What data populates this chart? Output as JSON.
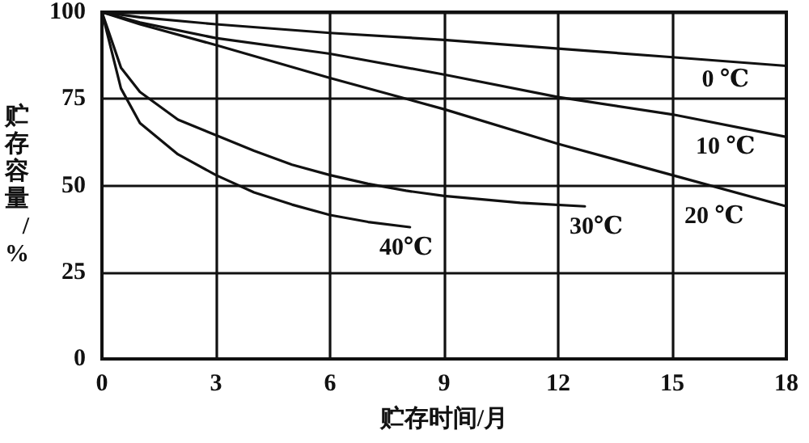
{
  "chart_data": {
    "type": "line",
    "xlabel": "贮存时间/月",
    "ylabel": "贮存容量/%",
    "xlim": [
      0,
      18
    ],
    "xticks": [
      0,
      3,
      6,
      9,
      12,
      15,
      18
    ],
    "ylim": [
      0,
      100
    ],
    "yticks": [
      0,
      25,
      50,
      75,
      100
    ],
    "grid": true,
    "marker": "none",
    "line_style": "solid",
    "series": [
      {
        "color": "#111111",
        "x": [
          0,
          1,
          3,
          6,
          9,
          12,
          15,
          18
        ],
        "values": [
          100,
          98.5,
          96.5,
          94,
          92,
          89.5,
          87,
          84.5
        ]
      },
      {
        "color": "#111111",
        "x": [
          0,
          1,
          3,
          6,
          9,
          12,
          15,
          18
        ],
        "values": [
          100,
          97,
          92.5,
          88,
          82,
          75.5,
          70.5,
          64
        ]
      },
      {
        "color": "#111111",
        "x": [
          0,
          1,
          3,
          6,
          9,
          12,
          15,
          18
        ],
        "values": [
          100,
          96.5,
          90.5,
          81,
          72,
          62,
          53,
          44
        ]
      },
      {
        "color": "#111111",
        "x": [
          0,
          0.5,
          1,
          2,
          3,
          4,
          5,
          6,
          7,
          8,
          9,
          10,
          11,
          12.7
        ],
        "values": [
          100,
          84,
          77,
          69,
          64.5,
          60,
          56,
          53,
          50.5,
          48.5,
          47,
          46,
          45,
          44
        ]
      },
      {
        "color": "#111111",
        "x": [
          0,
          0.5,
          1,
          2,
          3,
          4,
          5,
          6,
          7,
          8.1
        ],
        "values": [
          100,
          78,
          68,
          59,
          53,
          48,
          44.5,
          41.5,
          39.5,
          38
        ]
      }
    ],
    "annotations": [
      {
        "text": "0 ℃",
        "x": 16.4,
        "y": 80.5
      },
      {
        "text": "10 ℃",
        "x": 16.4,
        "y": 61
      },
      {
        "text": "20 ℃",
        "x": 16.1,
        "y": 41
      },
      {
        "text": "30℃",
        "x": 13,
        "y": 38
      },
      {
        "text": "40℃",
        "x": 8,
        "y": 32
      }
    ]
  }
}
